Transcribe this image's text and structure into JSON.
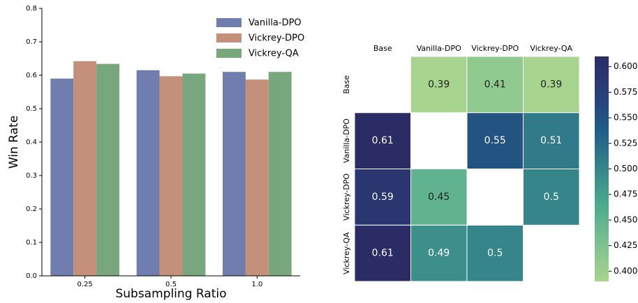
{
  "chart_data": [
    {
      "type": "bar",
      "xlabel": "Subsampling Ratio",
      "ylabel": "Win Rate",
      "categories": [
        "0.25",
        "0.5",
        "1.0"
      ],
      "series": [
        {
          "name": "Vanilla-DPO",
          "color": "#6f7eae",
          "values": [
            0.59,
            0.615,
            0.61
          ]
        },
        {
          "name": "Vickrey-DPO",
          "color": "#c4907a",
          "values": [
            0.642,
            0.597,
            0.587
          ]
        },
        {
          "name": "Vickrey-QA",
          "color": "#78a67d",
          "values": [
            0.634,
            0.605,
            0.61
          ]
        }
      ],
      "ylim": [
        0,
        0.8
      ],
      "yticks": [
        {
          "value": 0,
          "label": "0.0"
        },
        0.1,
        0.2,
        0.3,
        0.4,
        0.5,
        0.6,
        0.7,
        0.8
      ],
      "legend": "upper right"
    },
    {
      "type": "heatmap",
      "columns": [
        "Base",
        "Vanilla-DPO",
        "Vickrey-DPO",
        "Vickrey-QA"
      ],
      "rows": [
        "Base",
        "Vanilla-DPO",
        "Vickrey-DPO",
        "Vickrey-QA"
      ],
      "values": [
        [
          null,
          0.39,
          0.41,
          0.39
        ],
        [
          0.61,
          null,
          0.55,
          0.51
        ],
        [
          0.59,
          0.45,
          null,
          0.5
        ],
        [
          0.61,
          0.49,
          0.5,
          null
        ]
      ],
      "colors": [
        "#a7d48e",
        "#7dc190",
        "#4fab8d",
        "#36858b",
        "#1f5e86",
        "#283f78",
        "#2b2c66"
      ],
      "clim": [
        0.39,
        0.61
      ],
      "cticks": [
        {
          "value": 0.4,
          "label": "0.400"
        },
        0.425,
        {
          "value": 0.45,
          "label": "0.450"
        },
        0.475,
        {
          "value": 0.5,
          "label": "0.500"
        },
        0.525,
        {
          "value": 0.55,
          "label": "0.550"
        },
        0.575,
        {
          "value": 0.6,
          "label": "0.600"
        }
      ]
    }
  ]
}
